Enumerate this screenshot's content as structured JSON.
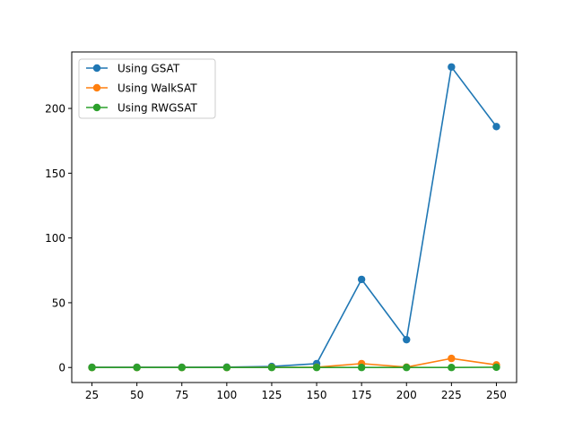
{
  "chart_data": {
    "type": "line",
    "title": "",
    "xlabel": "",
    "ylabel": "",
    "x": [
      25,
      50,
      75,
      100,
      125,
      150,
      175,
      200,
      225,
      250
    ],
    "xticks": [
      "25",
      "50",
      "75",
      "100",
      "125",
      "150",
      "175",
      "200",
      "225",
      "250"
    ],
    "yticks": [
      "0",
      "50",
      "100",
      "150",
      "200"
    ],
    "xlim": [
      13.75,
      261.25
    ],
    "ylim": [
      -11.6,
      243.6
    ],
    "grid": false,
    "legend": {
      "placement": "top-left"
    },
    "series": [
      {
        "name": "Using GSAT",
        "color": "#1f77b4",
        "values": [
          0.2,
          0.2,
          0.2,
          0.3,
          0.8,
          3,
          68,
          21.5,
          232,
          186
        ]
      },
      {
        "name": "Using WalkSAT",
        "color": "#ff7f0e",
        "values": [
          0,
          0,
          0,
          0,
          0.1,
          0.2,
          3,
          0.3,
          7,
          2
        ]
      },
      {
        "name": "Using RWGSAT",
        "color": "#2ca02c",
        "values": [
          0,
          0,
          0,
          0,
          0,
          0,
          0,
          0,
          0,
          0.2
        ]
      }
    ]
  }
}
